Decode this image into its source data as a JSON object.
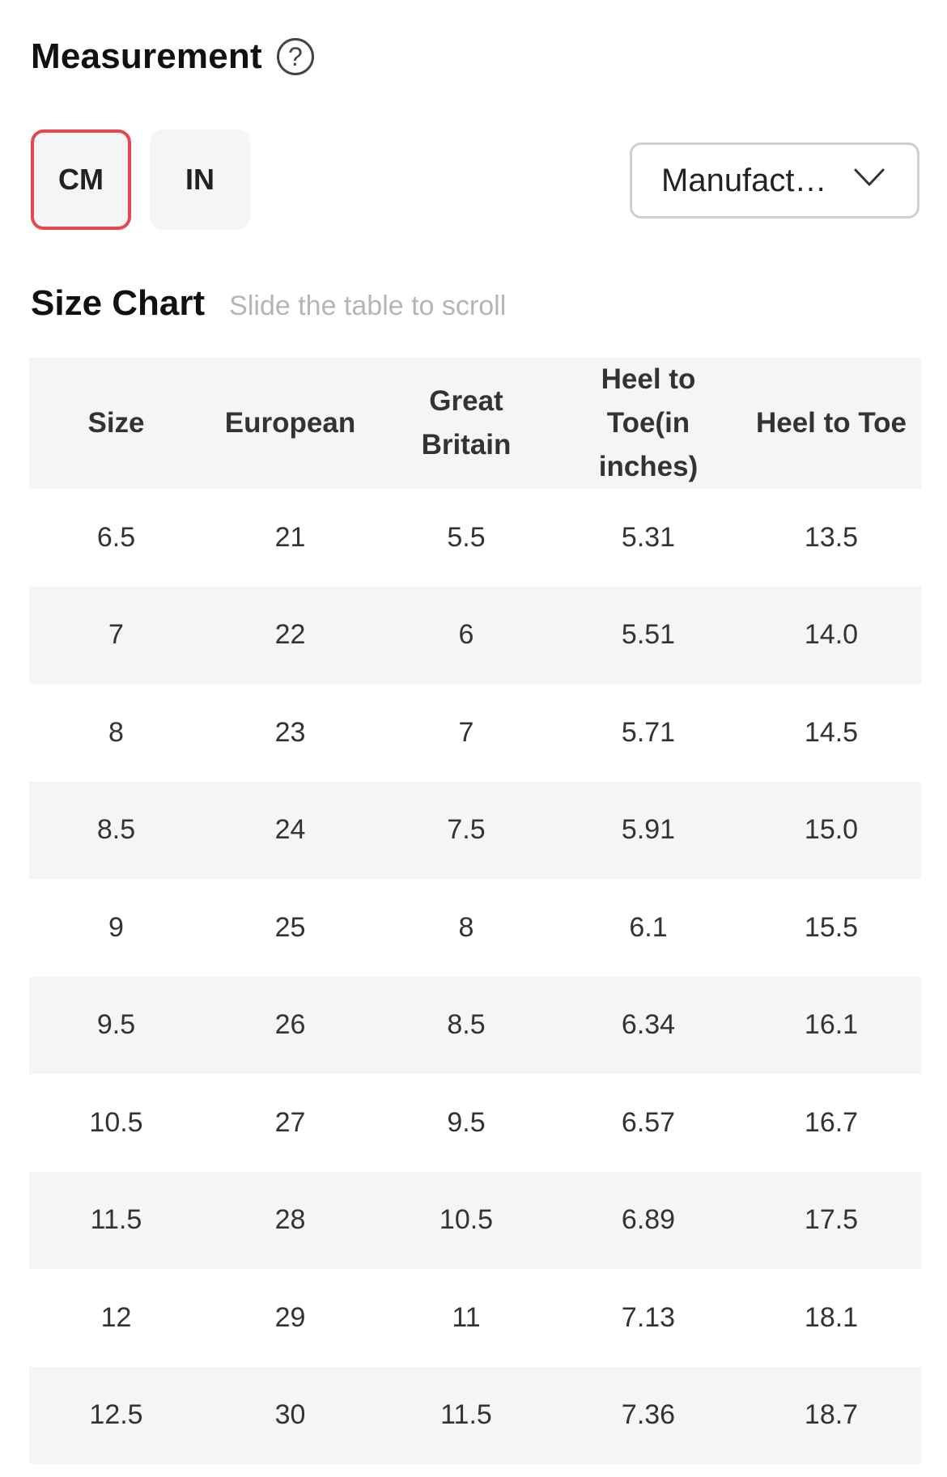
{
  "measurement": {
    "title": "Measurement",
    "help_icon": "question-circle-icon"
  },
  "units": {
    "options": [
      "CM",
      "IN"
    ],
    "selected": "CM",
    "selected_color": "#e5484d"
  },
  "dropdown": {
    "value": "Manufact…",
    "icon": "chevron-down-icon"
  },
  "size_chart": {
    "title": "Size Chart",
    "hint": "Slide the table to scroll"
  },
  "table": {
    "headers": [
      "Size",
      "European",
      "Great Britain",
      "Heel to Toe(in inches)",
      "Heel to Toe"
    ],
    "rows": [
      [
        "6.5",
        "21",
        "5.5",
        "5.31",
        "13.5"
      ],
      [
        "7",
        "22",
        "6",
        "5.51",
        "14.0"
      ],
      [
        "8",
        "23",
        "7",
        "5.71",
        "14.5"
      ],
      [
        "8.5",
        "24",
        "7.5",
        "5.91",
        "15.0"
      ],
      [
        "9",
        "25",
        "8",
        "6.1",
        "15.5"
      ],
      [
        "9.5",
        "26",
        "8.5",
        "6.34",
        "16.1"
      ],
      [
        "10.5",
        "27",
        "9.5",
        "6.57",
        "16.7"
      ],
      [
        "11.5",
        "28",
        "10.5",
        "6.89",
        "17.5"
      ],
      [
        "12",
        "29",
        "11",
        "7.13",
        "18.1"
      ],
      [
        "12.5",
        "30",
        "11.5",
        "7.36",
        "18.7"
      ]
    ]
  }
}
